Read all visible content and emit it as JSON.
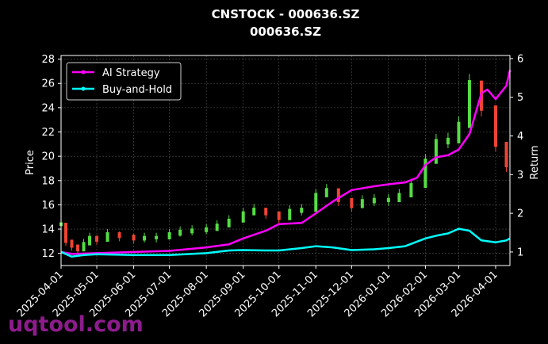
{
  "chart_data": {
    "type": "line",
    "title": "CNSTOCK - 000636.SZ",
    "subtitle": "000636.SZ",
    "ylabel_left": "Price",
    "ylabel_right": "Return",
    "xlim": [
      "2025-04-01",
      "2026-04-13"
    ],
    "ylim_left": [
      11.0,
      28.3
    ],
    "ylim_right": [
      0.65,
      6.08
    ],
    "left_ticks": [
      12,
      14,
      16,
      18,
      20,
      22,
      24,
      26,
      28
    ],
    "right_ticks": [
      1,
      2,
      3,
      4,
      5,
      6
    ],
    "x_ticks": [
      "2025-04-01",
      "2025-05-01",
      "2025-06-01",
      "2025-07-01",
      "2025-08-01",
      "2025-09-01",
      "2025-10-01",
      "2025-11-01",
      "2025-12-01",
      "2026-01-01",
      "2026-02-01",
      "2026-03-01",
      "2026-04-01"
    ],
    "grid": true,
    "legend_position": "top-left",
    "price_series": {
      "name": "Price",
      "kind": "candlestick",
      "up_color": "#55dd44",
      "down_color": "#ee4433",
      "x": [
        "2025-04-01",
        "2025-04-05",
        "2025-04-10",
        "2025-04-15",
        "2025-04-20",
        "2025-04-25",
        "2025-05-01",
        "2025-05-10",
        "2025-05-20",
        "2025-06-01",
        "2025-06-10",
        "2025-06-20",
        "2025-07-01",
        "2025-07-10",
        "2025-07-20",
        "2025-08-01",
        "2025-08-10",
        "2025-08-20",
        "2025-09-01",
        "2025-09-10",
        "2025-09-20",
        "2025-10-01",
        "2025-10-10",
        "2025-10-20",
        "2025-11-01",
        "2025-11-10",
        "2025-11-20",
        "2025-12-01",
        "2025-12-10",
        "2025-12-20",
        "2026-01-01",
        "2026-01-10",
        "2026-01-20",
        "2026-02-01",
        "2026-02-10",
        "2026-02-20",
        "2026-03-01",
        "2026-03-10",
        "2026-03-20",
        "2026-04-01",
        "2026-04-10"
      ],
      "values": [
        14.4,
        13.0,
        12.6,
        12.3,
        12.8,
        13.3,
        13.1,
        13.6,
        13.4,
        13.2,
        13.3,
        13.3,
        13.6,
        13.8,
        13.9,
        14.0,
        14.3,
        14.7,
        15.3,
        15.6,
        15.3,
        14.9,
        15.5,
        15.6,
        16.8,
        17.2,
        16.4,
        15.9,
        16.3,
        16.4,
        16.4,
        16.8,
        17.6,
        19.6,
        21.2,
        21.3,
        22.6,
        26.0,
        24.0,
        21.0,
        19.3
      ]
    },
    "series": [
      {
        "name": "AI Strategy",
        "color": "#ff00ff",
        "x": [
          "2025-04-01",
          "2025-04-10",
          "2025-05-01",
          "2025-06-01",
          "2025-07-01",
          "2025-08-01",
          "2025-08-20",
          "2025-09-01",
          "2025-09-20",
          "2025-10-01",
          "2025-10-20",
          "2025-11-01",
          "2025-11-15",
          "2025-12-01",
          "2025-12-20",
          "2026-01-01",
          "2026-01-15",
          "2026-01-25",
          "2026-02-01",
          "2026-02-10",
          "2026-02-20",
          "2026-03-01",
          "2026-03-10",
          "2026-03-20",
          "2026-03-25",
          "2026-04-01",
          "2026-04-10",
          "2026-04-13"
        ],
        "values": [
          1.0,
          0.95,
          0.97,
          1.0,
          1.03,
          1.12,
          1.2,
          1.35,
          1.55,
          1.72,
          1.75,
          2.0,
          2.3,
          2.6,
          2.7,
          2.75,
          2.8,
          2.92,
          3.25,
          3.45,
          3.5,
          3.65,
          4.05,
          5.1,
          5.2,
          4.95,
          5.3,
          5.7
        ]
      },
      {
        "name": "Buy-and-Hold",
        "color": "#00ffff",
        "x": [
          "2025-04-01",
          "2025-04-10",
          "2025-04-20",
          "2025-05-01",
          "2025-06-01",
          "2025-07-01",
          "2025-08-01",
          "2025-08-20",
          "2025-09-01",
          "2025-09-20",
          "2025-10-01",
          "2025-10-20",
          "2025-11-01",
          "2025-11-15",
          "2025-12-01",
          "2025-12-20",
          "2026-01-01",
          "2026-01-15",
          "2026-02-01",
          "2026-02-10",
          "2026-02-20",
          "2026-03-01",
          "2026-03-10",
          "2026-03-20",
          "2026-04-01",
          "2026-04-10",
          "2026-04-13"
        ],
        "values": [
          1.0,
          0.88,
          0.92,
          0.94,
          0.92,
          0.92,
          0.97,
          1.04,
          1.05,
          1.04,
          1.04,
          1.1,
          1.15,
          1.12,
          1.05,
          1.07,
          1.1,
          1.15,
          1.35,
          1.42,
          1.48,
          1.6,
          1.55,
          1.3,
          1.25,
          1.3,
          1.35
        ]
      }
    ]
  },
  "watermark": "uqtool.com"
}
